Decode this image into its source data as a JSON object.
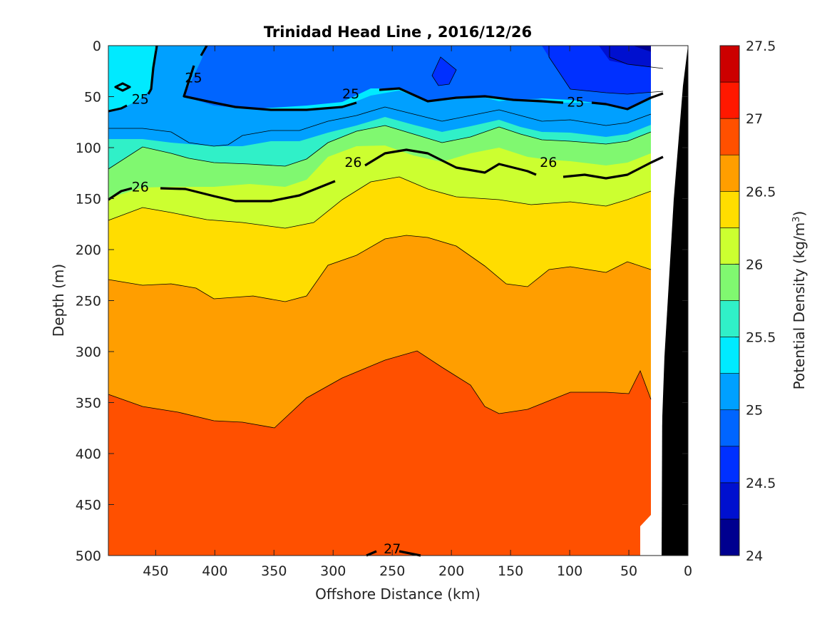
{
  "chart_data": {
    "type": "contour",
    "title": "Trinidad Head Line , 2016/12/26",
    "xlabel": "Offshore Distance (km)",
    "ylabel": "Depth (m)",
    "xlim": [
      490,
      0
    ],
    "ylim": [
      0,
      500
    ],
    "x_ticks": [
      "450",
      "400",
      "350",
      "300",
      "250",
      "200",
      "150",
      "100",
      "50",
      "0"
    ],
    "y_ticks": [
      "0",
      "50",
      "100",
      "150",
      "200",
      "250",
      "300",
      "350",
      "400",
      "450",
      "500"
    ],
    "colorbar": {
      "label": "Potential Density (kg/m",
      "label_sup": "3",
      "label_end": ")",
      "range": [
        24,
        27.5
      ],
      "ticks": [
        "24",
        "24.5",
        "25",
        "25.5",
        "26",
        "26.5",
        "27",
        "27.5"
      ],
      "levels": [
        24,
        24.25,
        24.5,
        24.75,
        25,
        25.25,
        25.5,
        25.75,
        26,
        26.25,
        26.5,
        26.75,
        27,
        27.25,
        27.5
      ],
      "colors": [
        "#00008f",
        "#0010cf",
        "#0030ff",
        "#0065ff",
        "#00a0ff",
        "#00eaff",
        "#30f0c8",
        "#80f870",
        "#ccff30",
        "#ffdd00",
        "#ff9e00",
        "#ff5000",
        "#ff1800",
        "#cc0000"
      ]
    },
    "contour_labels": [
      {
        "text": "25",
        "x": 463,
        "y": 52
      },
      {
        "text": "25",
        "x": 418,
        "y": 31
      },
      {
        "text": "25",
        "x": 285,
        "y": 47
      },
      {
        "text": "25",
        "x": 95,
        "y": 55
      },
      {
        "text": "26",
        "x": 463,
        "y": 138
      },
      {
        "text": "26",
        "x": 283,
        "y": 114
      },
      {
        "text": "26",
        "x": 118,
        "y": 114
      },
      {
        "text": "27",
        "x": 250,
        "y": 493
      }
    ],
    "bathymetry": "seafloor shown in black near 0-25 km"
  }
}
